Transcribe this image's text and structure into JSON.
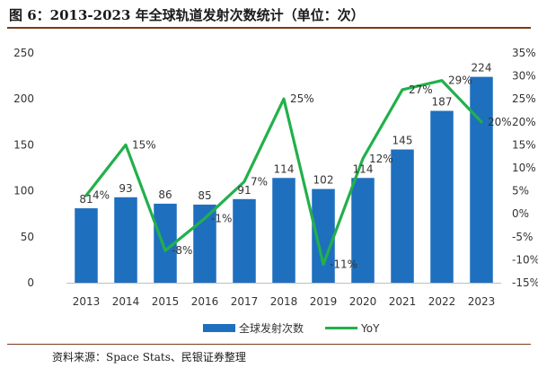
{
  "title": "图 6：2013-2023 年全球轨道发射次数统计（单位：次）",
  "source": "资料来源：Space Stats、民银证券整理",
  "chart_data": {
    "type": "bar+line",
    "categories": [
      "2013",
      "2014",
      "2015",
      "2016",
      "2017",
      "2018",
      "2019",
      "2020",
      "2021",
      "2022",
      "2023"
    ],
    "series": [
      {
        "name": "全球发射次数",
        "type": "bar",
        "axis": "left",
        "color": "#1f6fbf",
        "values": [
          81,
          93,
          86,
          85,
          91,
          114,
          102,
          114,
          145,
          187,
          224
        ]
      },
      {
        "name": "YoY",
        "type": "line",
        "axis": "right",
        "color": "#22b04b",
        "values": [
          4,
          15,
          -8,
          -1,
          7,
          25,
          -11,
          12,
          27,
          29,
          20
        ],
        "labels": [
          "4%",
          "15%",
          "-8%",
          "-1%",
          "7%",
          "25%",
          "-11%",
          "12%",
          "27%",
          "29%",
          "20%"
        ]
      }
    ],
    "y_left": {
      "min": 0,
      "max": 250,
      "ticks": [
        0,
        50,
        100,
        150,
        200,
        250
      ]
    },
    "y_right": {
      "min": -15,
      "max": 35,
      "ticks": [
        -15,
        -10,
        -5,
        0,
        5,
        10,
        15,
        20,
        25,
        30,
        35
      ],
      "tick_labels": [
        "-15%",
        "-10%",
        "-5%",
        "0%",
        "5%",
        "10%",
        "15%",
        "20%",
        "25%",
        "30%",
        "35%"
      ]
    },
    "grid": false,
    "legend": "bottom"
  }
}
